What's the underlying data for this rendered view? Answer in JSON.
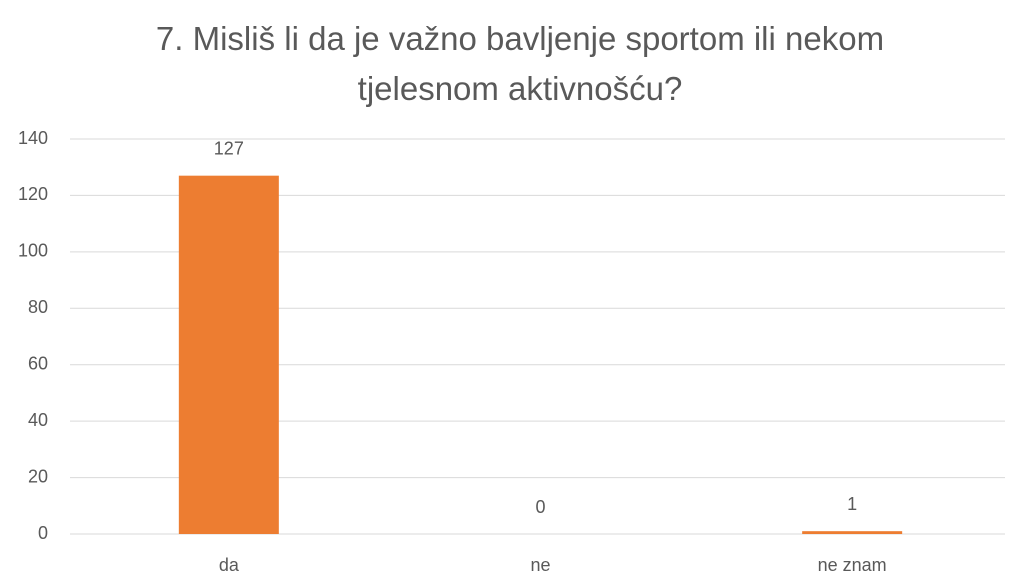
{
  "chart_data": {
    "type": "bar",
    "title": "7. Misliš li da je važno bavljenje sportom ili nekom tjelesnom aktivnošću?",
    "categories": [
      "da",
      "ne",
      "ne znam"
    ],
    "values": [
      127,
      0,
      1
    ],
    "color": "#ed7d31",
    "ylim": [
      0,
      140
    ],
    "yticks": [
      0,
      20,
      40,
      60,
      80,
      100,
      120,
      140
    ],
    "grid": true
  }
}
